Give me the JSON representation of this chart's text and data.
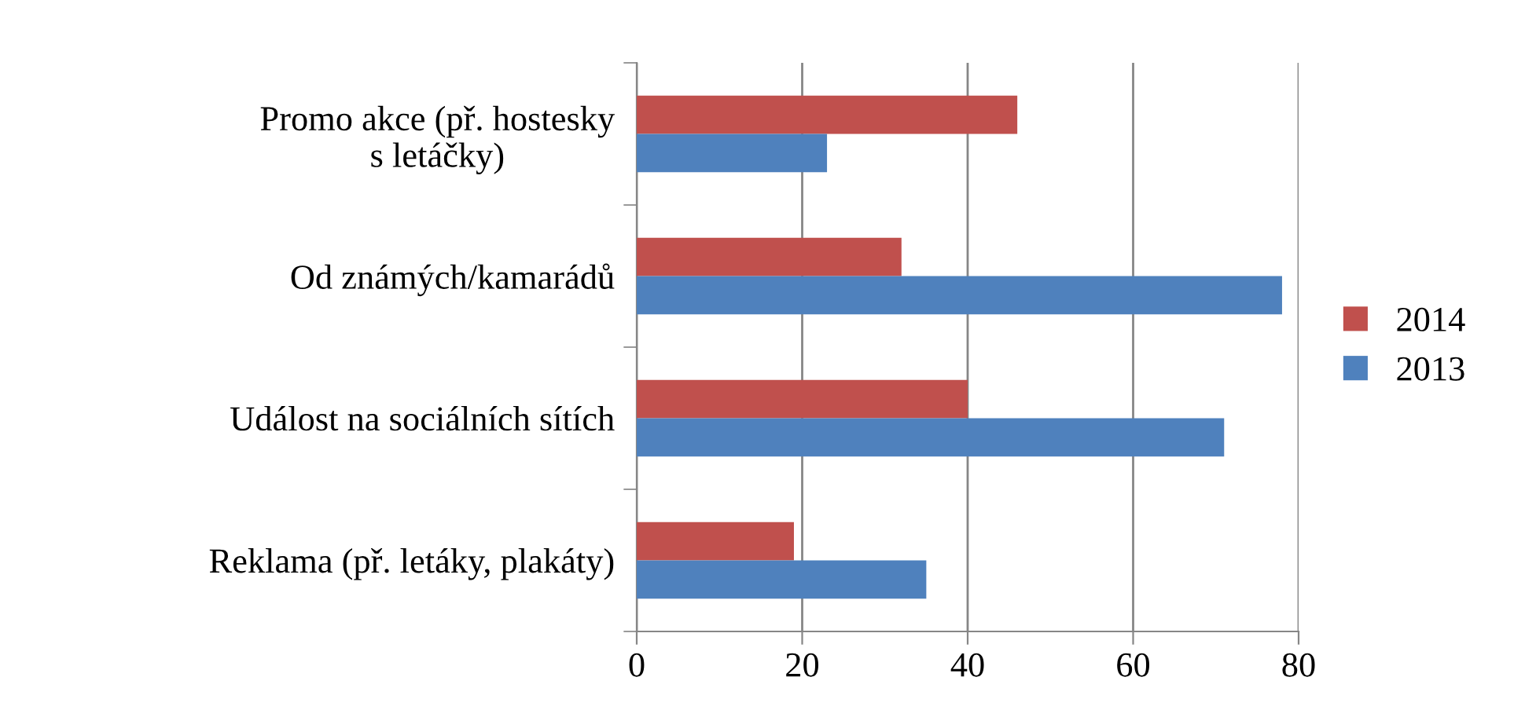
{
  "chart_data": {
    "type": "bar",
    "orientation": "horizontal",
    "categories": [
      "Promo akce (př. hostesky\ns letáčky)",
      "Od známých/kamarádů",
      "Událost na sociálních sítích",
      "Reklama (př. letáky, plakáty)"
    ],
    "series": [
      {
        "name": "2014",
        "color": "#c0504d",
        "values": [
          46,
          32,
          40,
          19
        ]
      },
      {
        "name": "2013",
        "color": "#4f81bd",
        "values": [
          23,
          78,
          71,
          35
        ]
      }
    ],
    "xlim": [
      0,
      80
    ],
    "xticks": [
      0,
      20,
      40,
      60,
      80
    ],
    "grid": "x",
    "legend": "right"
  }
}
